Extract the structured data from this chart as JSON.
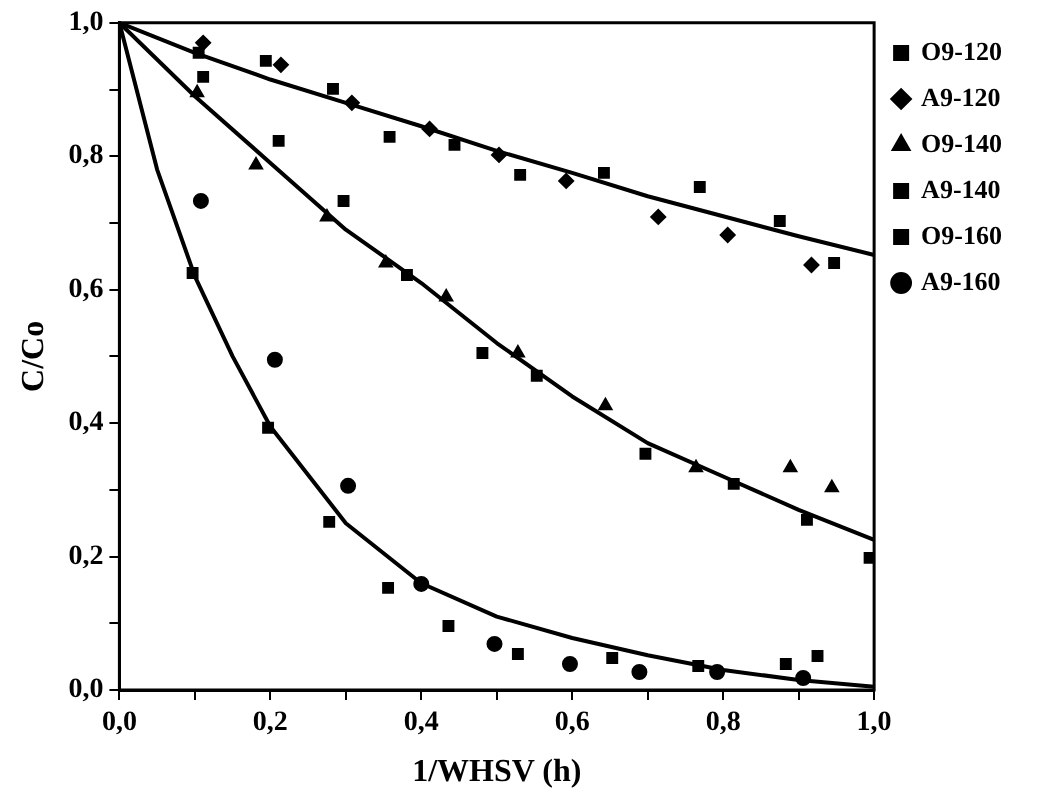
{
  "chart_data": {
    "type": "scatter",
    "xlabel": "1/WHSV (h)",
    "ylabel": "C/Co",
    "legend": "right",
    "grid": false,
    "xlim": [
      0,
      1
    ],
    "ylim": [
      0,
      1
    ],
    "xticks": [
      {
        "value": 0,
        "label": "0,0"
      },
      {
        "value": 0.1,
        "label": null
      },
      {
        "value": 0.2,
        "label": "0,2"
      },
      {
        "value": 0.3,
        "label": null
      },
      {
        "value": 0.4,
        "label": "0,4"
      },
      {
        "value": 0.5,
        "label": null
      },
      {
        "value": 0.6,
        "label": "0,6"
      },
      {
        "value": 0.7,
        "label": null
      },
      {
        "value": 0.8,
        "label": "0,8"
      },
      {
        "value": 0.9,
        "label": null
      },
      {
        "value": 1,
        "label": "1,0"
      }
    ],
    "yticks": [
      {
        "value": 0,
        "label": "0,0"
      },
      {
        "value": 0.1,
        "label": null
      },
      {
        "value": 0.2,
        "label": "0,2"
      },
      {
        "value": 0.3,
        "label": null
      },
      {
        "value": 0.4,
        "label": "0,4"
      },
      {
        "value": 0.5,
        "label": null
      },
      {
        "value": 0.6,
        "label": "0,6"
      },
      {
        "value": 0.7,
        "label": null
      },
      {
        "value": 0.8,
        "label": "0,8"
      },
      {
        "value": 0.9,
        "label": null
      },
      {
        "value": 1,
        "label": "1,0"
      }
    ],
    "series": [
      {
        "name": "O9-120",
        "color": "#000000",
        "marker": "square",
        "x": [
          0.105,
          0.194,
          0.283,
          0.358,
          0.444,
          0.531,
          0.642,
          0.769,
          0.875,
          0.947
        ],
        "values": [
          0.955,
          0.943,
          0.901,
          0.829,
          0.817,
          0.772,
          0.775,
          0.754,
          0.703,
          0.64
        ]
      },
      {
        "name": "A9-120",
        "color": "#000000",
        "marker": "diamond",
        "x": [
          0.111,
          0.214,
          0.308,
          0.411,
          0.503,
          0.592,
          0.714,
          0.806,
          0.917
        ],
        "values": [
          0.97,
          0.937,
          0.88,
          0.841,
          0.802,
          0.763,
          0.709,
          0.682,
          0.637
        ]
      },
      {
        "name": "O9-140",
        "color": "#000000",
        "marker": "triangle",
        "x": [
          0.103,
          0.181,
          0.275,
          0.353,
          0.433,
          0.528,
          0.644,
          0.764,
          0.889,
          0.944
        ],
        "values": [
          0.895,
          0.787,
          0.709,
          0.64,
          0.589,
          0.505,
          0.426,
          0.333,
          0.333,
          0.303
        ]
      },
      {
        "name": "A9-140",
        "color": "#000000",
        "marker": "square",
        "x": [
          0.111,
          0.211,
          0.297,
          0.381,
          0.481,
          0.553,
          0.697,
          0.814,
          0.911,
          0.994
        ],
        "values": [
          0.919,
          0.823,
          0.733,
          0.622,
          0.505,
          0.471,
          0.354,
          0.309,
          0.255,
          0.198
        ]
      },
      {
        "name": "O9-160",
        "color": "#000000",
        "marker": "square",
        "x": [
          0.097,
          0.197,
          0.278,
          0.356,
          0.436,
          0.528,
          0.653,
          0.767,
          0.883,
          0.925
        ],
        "values": [
          0.625,
          0.393,
          0.252,
          0.153,
          0.096,
          0.054,
          0.048,
          0.036,
          0.039,
          0.051
        ]
      },
      {
        "name": "A9-160",
        "color": "#000000",
        "marker": "circle",
        "x": [
          0.108,
          0.206,
          0.303,
          0.4,
          0.497,
          0.597,
          0.689,
          0.792,
          0.906
        ],
        "values": [
          0.733,
          0.495,
          0.306,
          0.159,
          0.069,
          0.039,
          0.027,
          0.027,
          0.018
        ]
      },
      {
        "type": "line",
        "color": "#000000",
        "marker": "none",
        "x": [
          0,
          0.1,
          0.2,
          0.3,
          0.4,
          0.5,
          0.6,
          0.7,
          0.8,
          0.9,
          1
        ],
        "values": [
          1,
          0.955,
          0.915,
          0.88,
          0.845,
          0.808,
          0.775,
          0.74,
          0.71,
          0.68,
          0.652
        ]
      },
      {
        "type": "line",
        "color": "#000000",
        "marker": "none",
        "x": [
          0,
          0.1,
          0.2,
          0.3,
          0.4,
          0.5,
          0.6,
          0.7,
          0.8,
          0.9,
          1
        ],
        "values": [
          1,
          0.89,
          0.79,
          0.69,
          0.61,
          0.52,
          0.44,
          0.37,
          0.32,
          0.27,
          0.225
        ]
      },
      {
        "type": "line",
        "color": "#000000",
        "marker": "none",
        "x": [
          0,
          0.05,
          0.1,
          0.15,
          0.2,
          0.3,
          0.4,
          0.5,
          0.6,
          0.7,
          0.8,
          0.9,
          1
        ],
        "values": [
          1,
          0.78,
          0.62,
          0.5,
          0.395,
          0.25,
          0.16,
          0.11,
          0.078,
          0.052,
          0.03,
          0.015,
          0.005
        ]
      }
    ]
  }
}
